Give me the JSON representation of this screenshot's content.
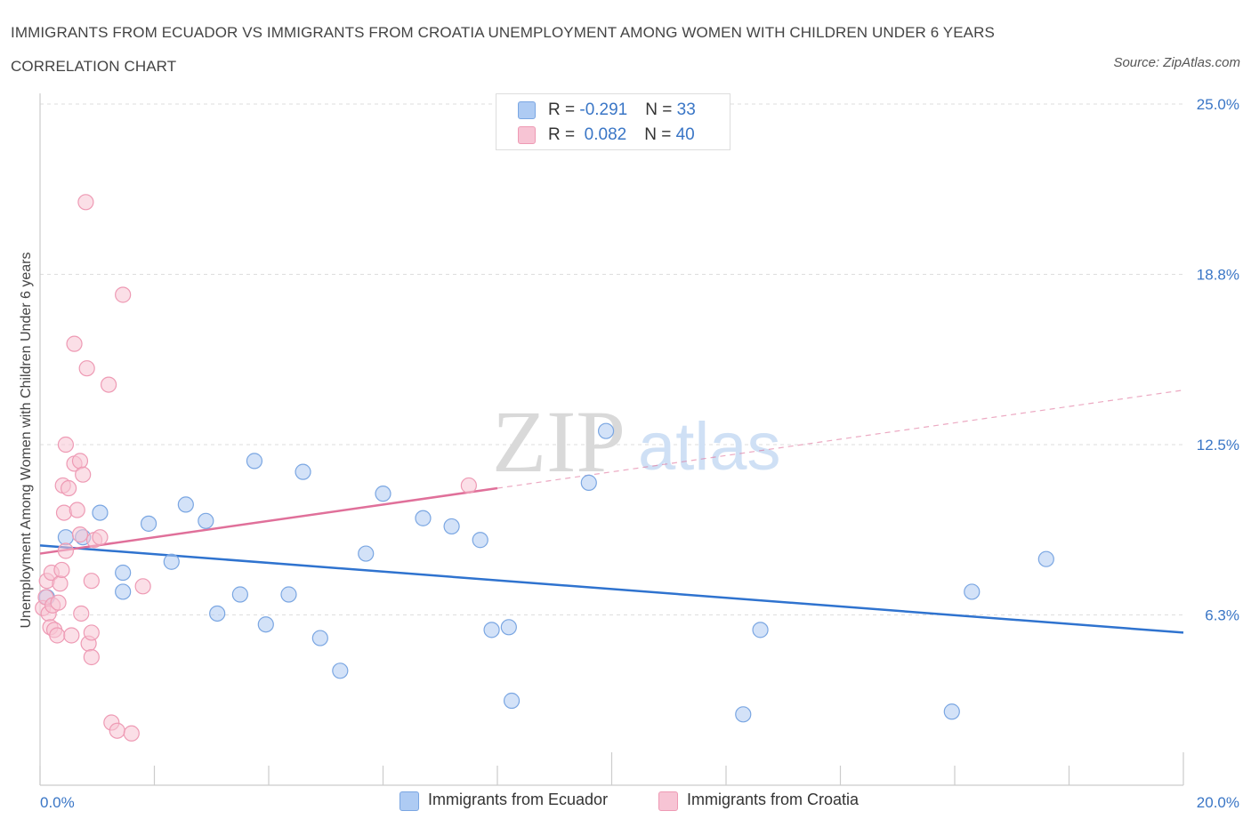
{
  "title": "IMMIGRANTS FROM ECUADOR VS IMMIGRANTS FROM CROATIA UNEMPLOYMENT AMONG WOMEN WITH CHILDREN UNDER 6 YEARS CORRELATION CHART",
  "source": "Source: ZipAtlas.com",
  "watermark": {
    "zip": "ZIP",
    "atlas": "atlas"
  },
  "colors": {
    "blue_fill": "#aecbf3",
    "blue_stroke": "#7aa6e2",
    "blue_line": "#2f73cf",
    "pink_fill": "#f7c4d4",
    "pink_stroke": "#ee9ab4",
    "pink_line": "#e0709a",
    "axis_label": "#3a76c6",
    "grid": "#dddddd"
  },
  "legend_box": {
    "rows": [
      {
        "r_label": "R = ",
        "r_value": "-0.291",
        "n_label": "N = ",
        "n_value": "33",
        "color": "#aecbf3",
        "stroke": "#7aa6e2"
      },
      {
        "r_label": "R = ",
        "r_value": " 0.082",
        "n_label": "N = ",
        "n_value": "40",
        "color": "#f7c4d4",
        "stroke": "#ee9ab4"
      }
    ]
  },
  "legend": [
    {
      "label": "Immigrants from Ecuador",
      "color": "#aecbf3",
      "stroke": "#7aa6e2"
    },
    {
      "label": "Immigrants from Croatia",
      "color": "#f7c4d4",
      "stroke": "#ee9ab4"
    }
  ],
  "chart_data": {
    "type": "scatter",
    "title": "IMMIGRANTS FROM ECUADOR VS IMMIGRANTS FROM CROATIA UNEMPLOYMENT AMONG WOMEN WITH CHILDREN UNDER 6 YEARS CORRELATION CHART",
    "xlabel": "",
    "ylabel": "Unemployment Among Women with Children Under 6 years",
    "xlim": [
      0,
      20
    ],
    "ylim": [
      0,
      25
    ],
    "x_tick_labels": [
      "0.0%",
      "20.0%"
    ],
    "y_ticks": [
      6.25,
      12.5,
      18.75,
      25.0
    ],
    "y_tick_labels": [
      "6.3%",
      "12.5%",
      "18.8%",
      "25.0%"
    ],
    "grid": true,
    "series": [
      {
        "name": "Immigrants from Ecuador",
        "r": -0.291,
        "n": 33,
        "trend": {
          "x0": 0,
          "y0": 8.8,
          "x1": 20,
          "y1": 5.6,
          "solid_to": 20
        },
        "points": [
          [
            0.12,
            6.9
          ],
          [
            0.45,
            9.1
          ],
          [
            0.75,
            9.1
          ],
          [
            1.05,
            10.0
          ],
          [
            1.45,
            7.8
          ],
          [
            1.45,
            7.1
          ],
          [
            1.9,
            9.6
          ],
          [
            2.3,
            8.2
          ],
          [
            2.55,
            10.3
          ],
          [
            2.9,
            9.7
          ],
          [
            3.1,
            6.3
          ],
          [
            3.5,
            7.0
          ],
          [
            3.75,
            11.9
          ],
          [
            3.95,
            5.9
          ],
          [
            4.35,
            7.0
          ],
          [
            4.6,
            11.5
          ],
          [
            4.9,
            5.4
          ],
          [
            5.25,
            4.2
          ],
          [
            5.7,
            8.5
          ],
          [
            6.0,
            10.7
          ],
          [
            6.7,
            9.8
          ],
          [
            7.2,
            9.5
          ],
          [
            7.7,
            9.0
          ],
          [
            7.9,
            5.7
          ],
          [
            8.2,
            5.8
          ],
          [
            8.25,
            3.1
          ],
          [
            9.6,
            11.1
          ],
          [
            9.9,
            13.0
          ],
          [
            12.3,
            2.6
          ],
          [
            12.6,
            5.7
          ],
          [
            15.95,
            2.7
          ],
          [
            16.3,
            7.1
          ],
          [
            17.6,
            8.3
          ]
        ]
      },
      {
        "name": "Immigrants from Croatia",
        "r": 0.082,
        "n": 40,
        "trend": {
          "x0": 0,
          "y0": 8.5,
          "x1": 20,
          "y1": 14.5,
          "solid_to": 8.0
        },
        "points": [
          [
            0.05,
            6.5
          ],
          [
            0.1,
            6.9
          ],
          [
            0.12,
            7.5
          ],
          [
            0.15,
            6.3
          ],
          [
            0.18,
            5.8
          ],
          [
            0.2,
            7.8
          ],
          [
            0.22,
            6.6
          ],
          [
            0.25,
            5.7
          ],
          [
            0.3,
            5.5
          ],
          [
            0.32,
            6.7
          ],
          [
            0.35,
            7.4
          ],
          [
            0.38,
            7.9
          ],
          [
            0.4,
            11.0
          ],
          [
            0.42,
            10.0
          ],
          [
            0.45,
            8.6
          ],
          [
            0.5,
            10.9
          ],
          [
            0.45,
            12.5
          ],
          [
            0.55,
            5.5
          ],
          [
            0.6,
            11.8
          ],
          [
            0.65,
            10.1
          ],
          [
            0.7,
            9.2
          ],
          [
            0.7,
            11.9
          ],
          [
            0.72,
            6.3
          ],
          [
            0.75,
            11.4
          ],
          [
            0.8,
            21.4
          ],
          [
            0.82,
            15.3
          ],
          [
            0.6,
            16.2
          ],
          [
            0.85,
            5.2
          ],
          [
            0.9,
            5.6
          ],
          [
            0.9,
            4.7
          ],
          [
            0.9,
            7.5
          ],
          [
            0.95,
            9.0
          ],
          [
            1.05,
            9.1
          ],
          [
            1.2,
            14.7
          ],
          [
            1.25,
            2.3
          ],
          [
            1.35,
            2.0
          ],
          [
            1.45,
            18.0
          ],
          [
            1.6,
            1.9
          ],
          [
            1.8,
            7.3
          ],
          [
            7.5,
            11.0
          ]
        ]
      }
    ]
  }
}
